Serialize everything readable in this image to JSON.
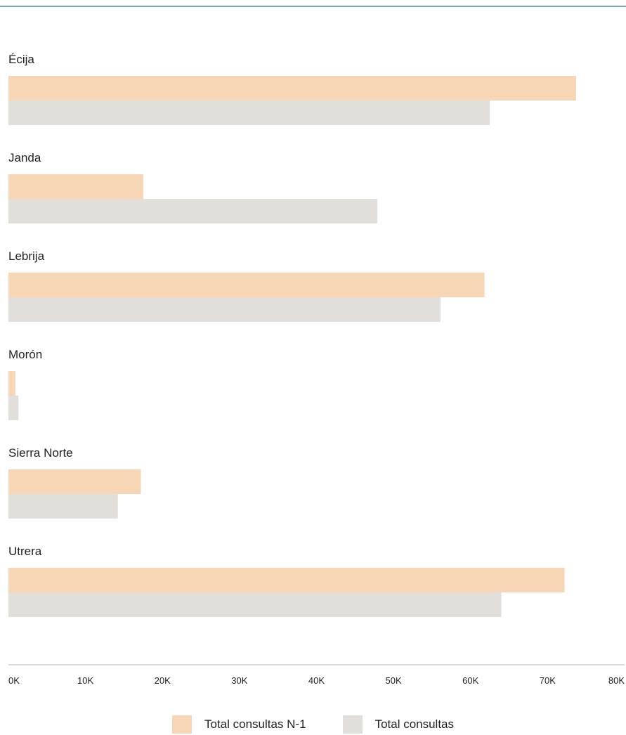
{
  "chart_data": {
    "type": "bar",
    "orientation": "horizontal",
    "categories": [
      "Écija",
      "Janda",
      "Lebrija",
      "Morón",
      "Sierra Norte",
      "Utrera"
    ],
    "series": [
      {
        "name": "Total consultas N-1",
        "color": "#f6d6b4",
        "values": [
          73700,
          17500,
          61800,
          900,
          17200,
          72200
        ]
      },
      {
        "name": "Total consultas",
        "color": "#e2dfda",
        "values": [
          62500,
          47900,
          56100,
          1300,
          14200,
          64000
        ]
      }
    ],
    "xlim": [
      0,
      80000
    ],
    "xticks": [
      "0K",
      "10K",
      "20K",
      "30K",
      "40K",
      "50K",
      "60K",
      "70K",
      "80K"
    ],
    "legend_position": "bottom"
  }
}
